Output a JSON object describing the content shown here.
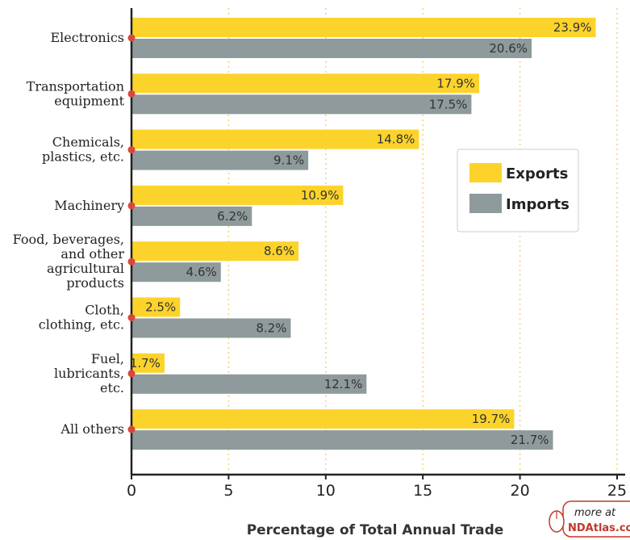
{
  "chart_data": {
    "type": "bar",
    "orientation": "horizontal",
    "categories": [
      "Electronics",
      "Transportation\nequipment",
      "Chemicals,\nplastics, etc.",
      "Machinery",
      "Food, beverages,\nand other\nagricultural\nproducts",
      "Cloth,\nclothing, etc.",
      "Fuel,\nlubricants,\netc.",
      "All others"
    ],
    "series": [
      {
        "name": "Exports",
        "color": "#fcd32a",
        "values": [
          23.9,
          17.9,
          14.8,
          10.9,
          8.6,
          2.5,
          1.7,
          19.7
        ],
        "labels": [
          "23.9%",
          "17.9%",
          "14.8%",
          "10.9%",
          "8.6%",
          "2.5%",
          "1.7%",
          "19.7%"
        ]
      },
      {
        "name": "Imports",
        "color": "#8e9a9b",
        "values": [
          20.6,
          17.5,
          9.1,
          6.2,
          4.6,
          8.2,
          12.1,
          21.7
        ],
        "labels": [
          "20.6%",
          "17.5%",
          "9.1%",
          "6.2%",
          "4.6%",
          "8.2%",
          "12.1%",
          "21.7%"
        ]
      }
    ],
    "xlim": [
      0,
      25
    ],
    "xticks": [
      "0",
      "5",
      "10",
      "15",
      "20",
      "25"
    ],
    "xlabel": "Percentage of Total Annual Trade",
    "title": "",
    "grid": "vertical dotted",
    "legend_position": "right-middle"
  },
  "badge": {
    "line1": "more at",
    "line2": "NDAtlas.com"
  },
  "colors": {
    "axis": "#222222",
    "grid": "#f3d27a",
    "marker": "#d9473b",
    "badge_border": "#c0392b"
  }
}
